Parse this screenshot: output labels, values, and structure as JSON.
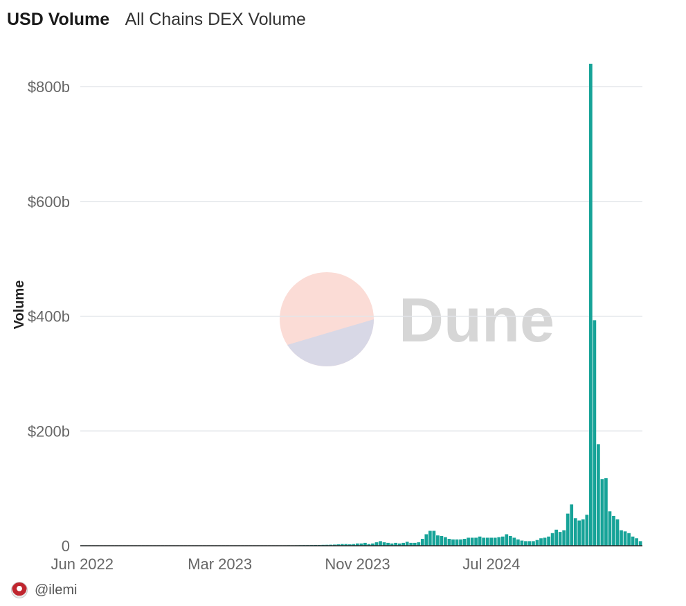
{
  "header": {
    "title": "USD Volume",
    "subtitle": "All Chains DEX Volume"
  },
  "footer": {
    "handle": "@ilemi"
  },
  "watermark": {
    "text": "Dune"
  },
  "colors": {
    "bar": "#17a398",
    "grid": "#e3e6ea",
    "axis": "#222222",
    "tick": "#666666"
  },
  "chart_data": {
    "type": "bar",
    "title": "All Chains DEX Volume",
    "xlabel": "",
    "ylabel": "Volume",
    "ylim": [
      0,
      840
    ],
    "y_unit": "billions USD",
    "yticks": [
      {
        "value": 0,
        "label": "0"
      },
      {
        "value": 200,
        "label": "$200b"
      },
      {
        "value": 400,
        "label": "$400b"
      },
      {
        "value": 600,
        "label": "$600b"
      },
      {
        "value": 800,
        "label": "$800b"
      }
    ],
    "xticks": [
      {
        "index": 0,
        "label": "Jun 2022"
      },
      {
        "index": 36,
        "label": "Mar 2023"
      },
      {
        "index": 72,
        "label": "Nov 2023"
      },
      {
        "index": 107,
        "label": "Jul 2024"
      }
    ],
    "series": [
      {
        "name": "Volume",
        "values": [
          0.4,
          0.5,
          0.5,
          0.4,
          0.5,
          0.6,
          0.5,
          0.5,
          0.6,
          0.5,
          0.4,
          0.5,
          0.6,
          0.5,
          0.5,
          0.6,
          0.5,
          0.5,
          0.4,
          0.5,
          0.5,
          0.6,
          0.5,
          0.6,
          0.5,
          0.5,
          0.5,
          0.6,
          0.5,
          0.6,
          0.5,
          0.5,
          0.6,
          0.5,
          0.5,
          0.6,
          0.5,
          0.6,
          0.6,
          0.5,
          0.5,
          0.6,
          0.6,
          0.5,
          0.6,
          0.6,
          0.5,
          0.6,
          0.6,
          0.6,
          0.7,
          0.6,
          0.7,
          0.7,
          0.8,
          0.7,
          0.8,
          0.9,
          1.0,
          1.0,
          1.1,
          1.2,
          1.3,
          1.5,
          1.6,
          1.8,
          2.0,
          2.5,
          3,
          3,
          2.5,
          3,
          4,
          4,
          5,
          3,
          4,
          6,
          8,
          6,
          5,
          4,
          5,
          4,
          5,
          7,
          5,
          5,
          6,
          12,
          20,
          26,
          26,
          18,
          17,
          15,
          12,
          11,
          11,
          11,
          12,
          14,
          14,
          14,
          16,
          14,
          14,
          14,
          14,
          15,
          16,
          20,
          17,
          14,
          11,
          9,
          8,
          8,
          8,
          10,
          13,
          14,
          16,
          22,
          28,
          24,
          27,
          56,
          72,
          48,
          44,
          46,
          54,
          840,
          393,
          177,
          116,
          118,
          60,
          52,
          46,
          27,
          25,
          22,
          16,
          13,
          8
        ]
      }
    ]
  }
}
